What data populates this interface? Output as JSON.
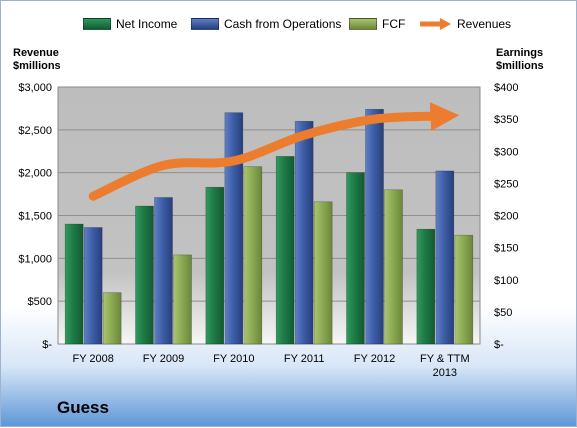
{
  "company": "Guess",
  "left_axis_title": [
    "Revenue",
    "$millions"
  ],
  "right_axis_title": [
    "Earnings",
    "$millions"
  ],
  "colors": {
    "net_income": "#1f7a47",
    "cash_from_operations": "#3f5fa8",
    "fcf": "#8fae55",
    "revenues": "#ec7d2f",
    "plot_bg": "#bcbcbc"
  },
  "chart_data": {
    "type": "bar",
    "title": "",
    "categories": [
      "FY 2008",
      "FY 2009",
      "FY 2010",
      "FY 2011",
      "FY 2012",
      "FY & TTM 2013"
    ],
    "category_labels": [
      [
        "FY 2008"
      ],
      [
        "FY 2009"
      ],
      [
        "FY 2010"
      ],
      [
        "FY 2011"
      ],
      [
        "FY 2012"
      ],
      [
        "FY & TTM",
        "2013"
      ]
    ],
    "left_axis": {
      "label": "Revenue $millions",
      "ylim": [
        0,
        3000
      ],
      "ticks": [
        "$-",
        "$500",
        "$1,000",
        "$1,500",
        "$2,000",
        "$2,500",
        "$3,000"
      ]
    },
    "right_axis": {
      "label": "Earnings $millions",
      "ylim": [
        0,
        400
      ],
      "ticks": [
        "$-",
        "$50",
        "$100",
        "$150",
        "$200",
        "$250",
        "$300",
        "$350",
        "$400"
      ]
    },
    "series": [
      {
        "name": "Net Income",
        "key": "net_income",
        "type": "bar",
        "axis": "left",
        "values": [
          1400,
          1610,
          1830,
          2190,
          2000,
          1340
        ]
      },
      {
        "name": "Cash from Operations",
        "key": "cash_from_operations",
        "type": "bar",
        "axis": "left",
        "values": [
          1360,
          1710,
          2700,
          2600,
          2740,
          2020
        ]
      },
      {
        "name": "FCF",
        "key": "fcf",
        "type": "bar",
        "axis": "left",
        "values": [
          600,
          1040,
          2070,
          1660,
          1800,
          1270
        ]
      },
      {
        "name": "Revenues",
        "key": "revenues",
        "type": "line",
        "axis": "right",
        "values": [
          230,
          278,
          285,
          325,
          350,
          355
        ]
      }
    ],
    "grid": true,
    "legend": "top"
  }
}
